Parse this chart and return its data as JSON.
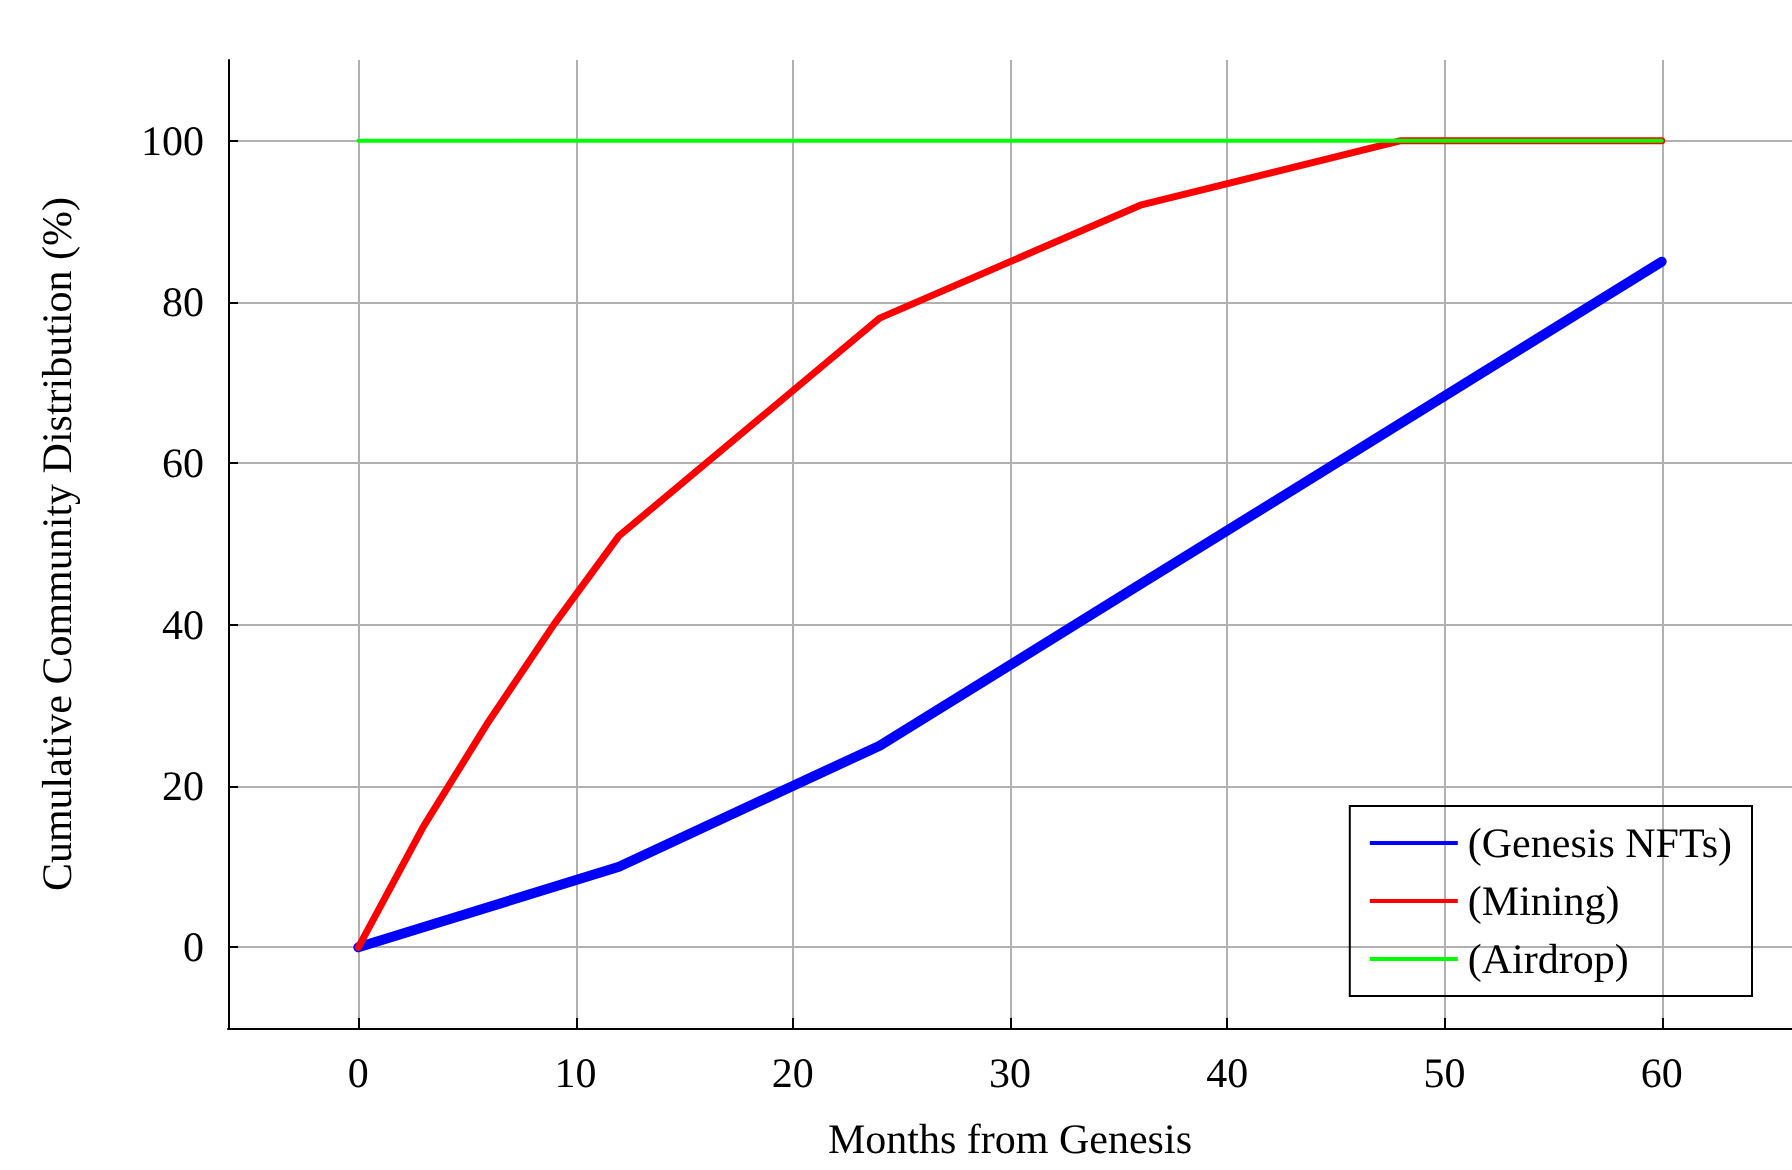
{
  "chart_data": {
    "type": "line",
    "xlabel": "Months from Genesis",
    "ylabel": "Cumulative Community Distribution (%)",
    "xlim": [
      -6,
      66
    ],
    "xticks": [
      0,
      10,
      20,
      30,
      40,
      50,
      60
    ],
    "ylim": [
      -10,
      110
    ],
    "yticks": [
      0,
      20,
      40,
      60,
      80,
      100
    ],
    "grid": true,
    "legend": "bottom right",
    "marker": "none",
    "line_style": "solid",
    "series": [
      {
        "name": "(Genesis NFTs)",
        "color": "#0000ff",
        "x": [
          0,
          12,
          24,
          36,
          48,
          60
        ],
        "values": [
          0,
          10,
          25,
          45,
          65,
          85
        ]
      },
      {
        "name": "(Mining)",
        "color": "#ff0000",
        "x": [
          0,
          3,
          6,
          9,
          12,
          24,
          36,
          48,
          60
        ],
        "values": [
          0,
          15,
          28,
          40,
          51,
          78,
          92,
          100,
          100
        ]
      },
      {
        "name": "(Airdrop)",
        "color": "#00ff00",
        "x": [
          0,
          60
        ],
        "values": [
          100,
          100
        ]
      }
    ]
  }
}
